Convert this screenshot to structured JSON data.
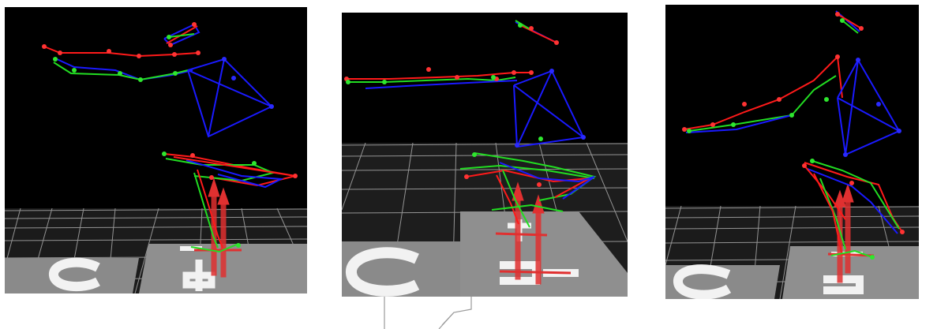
{
  "figure": {
    "panels": [
      {
        "id": "view-1",
        "floor_markers": [
          "1",
          "2"
        ],
        "color_legend": {
          "bone_red": "#ff1a1a",
          "bone_green": "#22dd22",
          "bone_blue": "#1a1aff"
        }
      },
      {
        "id": "view-2",
        "floor_markers": [
          "1",
          "2"
        ],
        "color_legend": {
          "bone_red": "#ff1a1a",
          "bone_green": "#22dd22",
          "bone_blue": "#1a1aff"
        }
      },
      {
        "id": "view-3",
        "floor_markers": [
          "1",
          "2"
        ],
        "color_legend": {
          "bone_red": "#ff1a1a",
          "bone_green": "#22dd22",
          "bone_blue": "#1a1aff"
        }
      }
    ],
    "colors": {
      "background": "#000000",
      "floor": "#7a7a7a",
      "floor_light": "#9a9a9a",
      "grid": "#bfbfbf",
      "force_arrow": "#e03030",
      "marker_paint": "#f2f2f2"
    }
  }
}
